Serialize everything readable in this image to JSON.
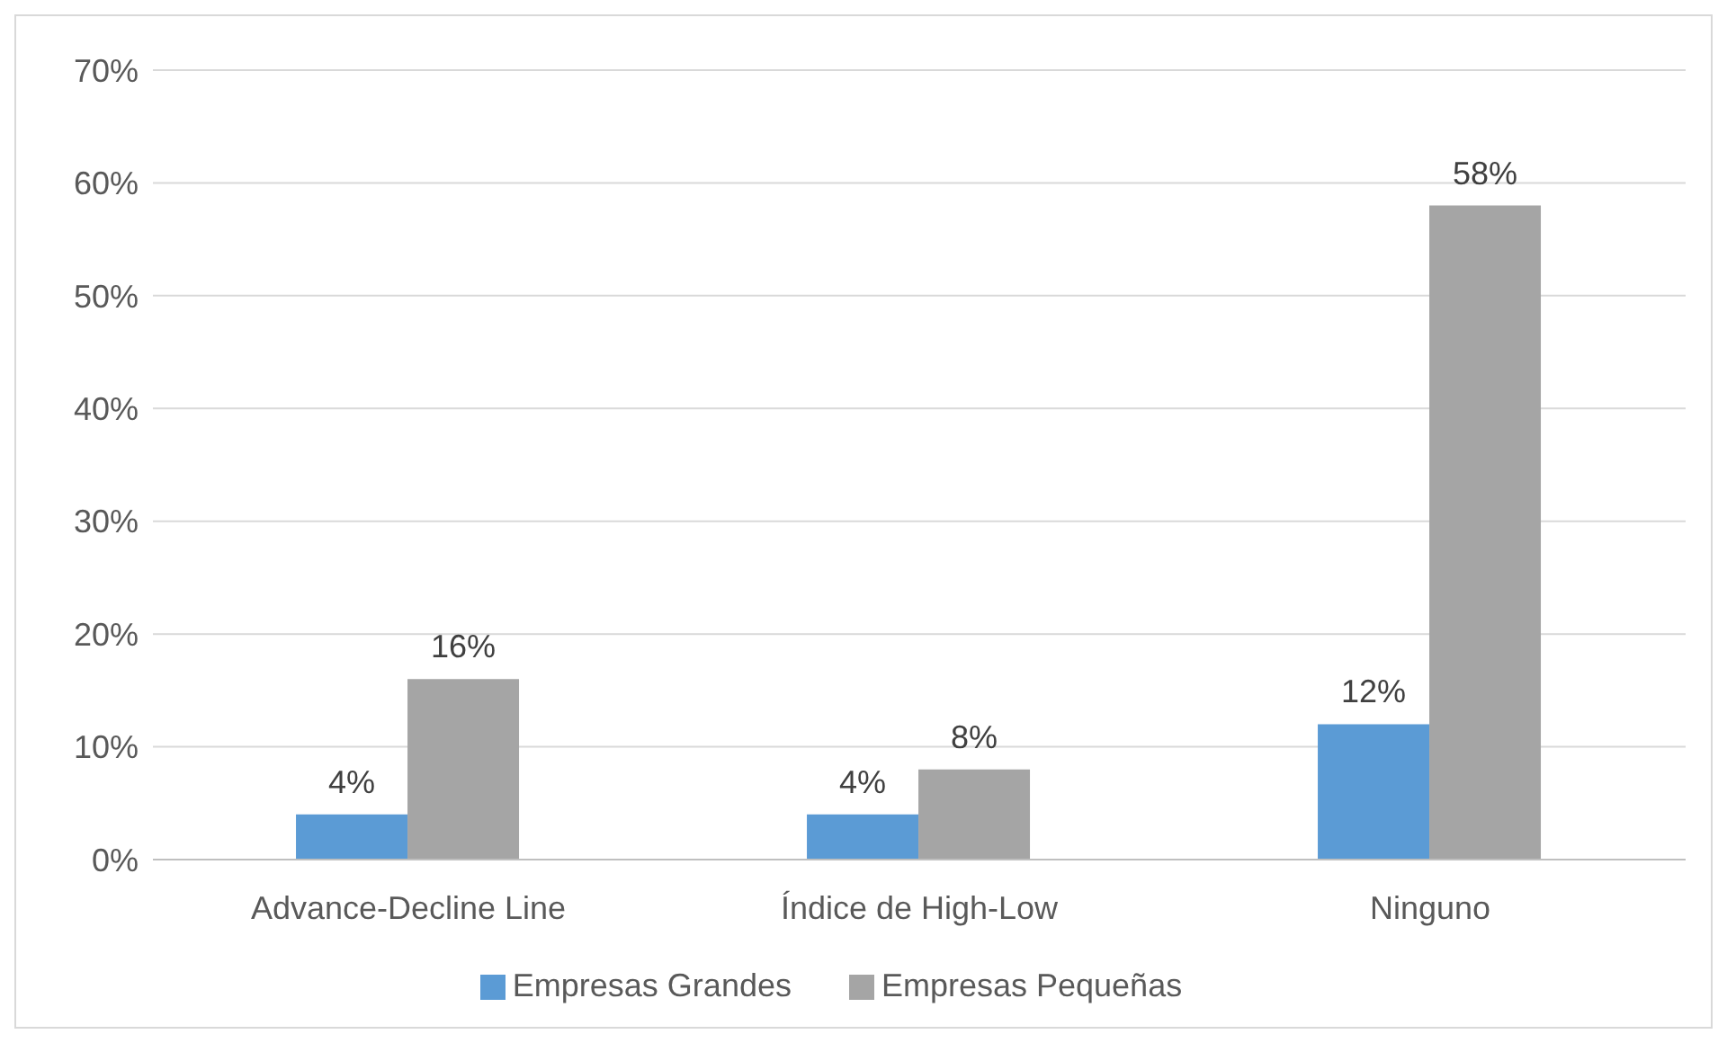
{
  "chart_data": {
    "type": "bar",
    "categories": [
      "Advance-Decline Line",
      "Índice de High-Low",
      "Ninguno"
    ],
    "series": [
      {
        "name": "Empresas Grandes",
        "color": "#5b9bd5",
        "values": [
          4,
          4,
          12
        ],
        "value_labels": [
          "4%",
          "4%",
          "12%"
        ]
      },
      {
        "name": "Empresas Pequeñas",
        "color": "#a5a5a5",
        "values": [
          16,
          8,
          58
        ],
        "value_labels": [
          "16%",
          "8%",
          "58%"
        ]
      }
    ],
    "ylim": [
      0,
      70
    ],
    "yticks": [
      {
        "value": 0,
        "label": "0%"
      },
      {
        "value": 10,
        "label": "10%"
      },
      {
        "value": 20,
        "label": "20%"
      },
      {
        "value": 30,
        "label": "30%"
      },
      {
        "value": 40,
        "label": "40%"
      },
      {
        "value": 50,
        "label": "50%"
      },
      {
        "value": 60,
        "label": "60%"
      },
      {
        "value": 70,
        "label": "70%"
      }
    ],
    "grid": "y",
    "legend": "bottom"
  }
}
